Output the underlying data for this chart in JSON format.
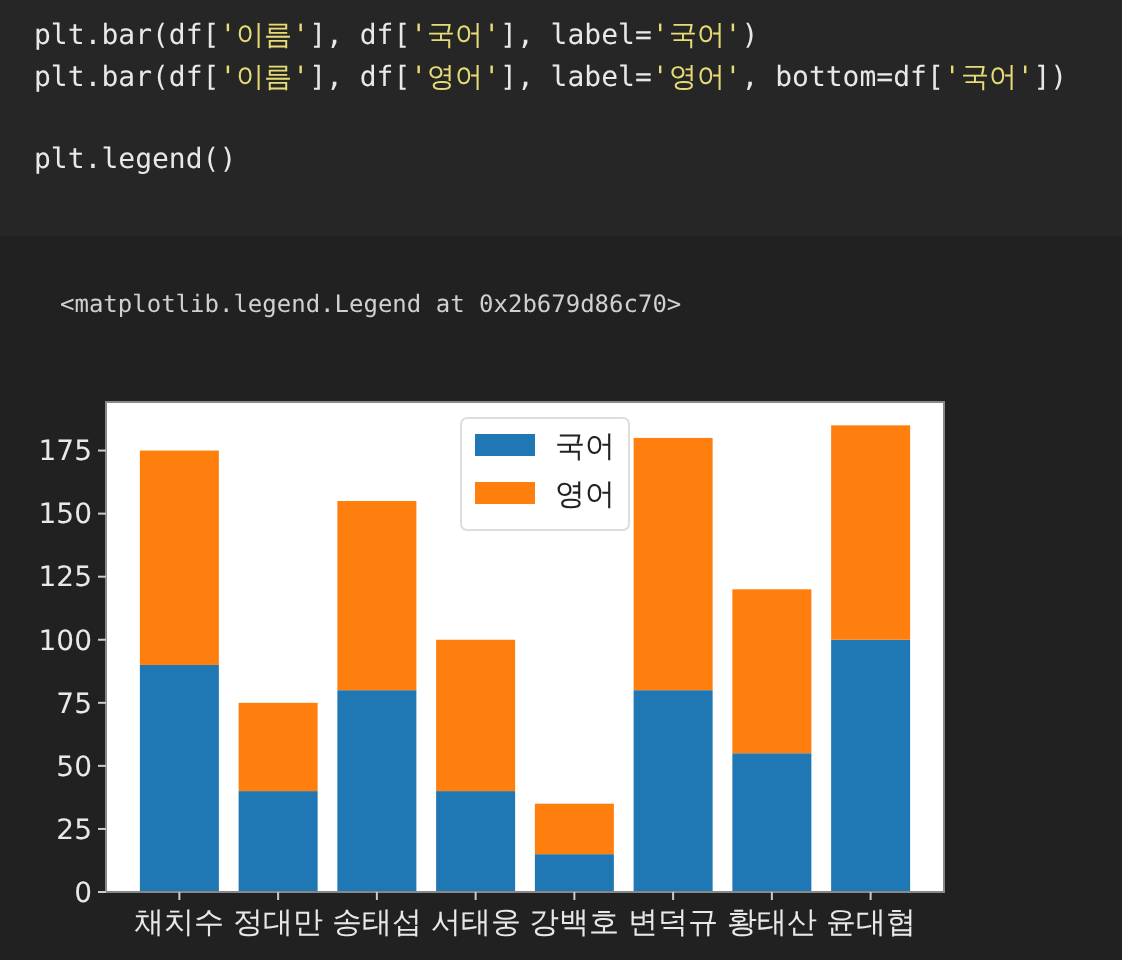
{
  "chart_data": {
    "type": "bar",
    "stacked": true,
    "categories": [
      "채치수",
      "정대만",
      "송태섭",
      "서태웅",
      "강백호",
      "변덕규",
      "황태산",
      "윤대협"
    ],
    "series": [
      {
        "name": "국어",
        "color": "#1f77b4",
        "values": [
          90,
          40,
          80,
          40,
          15,
          80,
          55,
          100
        ]
      },
      {
        "name": "영어",
        "color": "#ff7f0e",
        "values": [
          85,
          35,
          75,
          60,
          20,
          100,
          65,
          85
        ]
      }
    ],
    "ylim": [
      0,
      194.25
    ],
    "yticks": [
      0,
      25,
      50,
      75,
      100,
      125,
      150,
      175
    ],
    "grid": false,
    "legend": "top",
    "annotations": [
      "plt.bar(df['이름'], df['국어'], label='국어')",
      "plt.bar(df['이름'], df['영어'], label='영어', bottom=df['국어'])",
      "plt.legend()",
      "<matplotlib.legend.Legend at 0x2b679d86c70>"
    ]
  }
}
